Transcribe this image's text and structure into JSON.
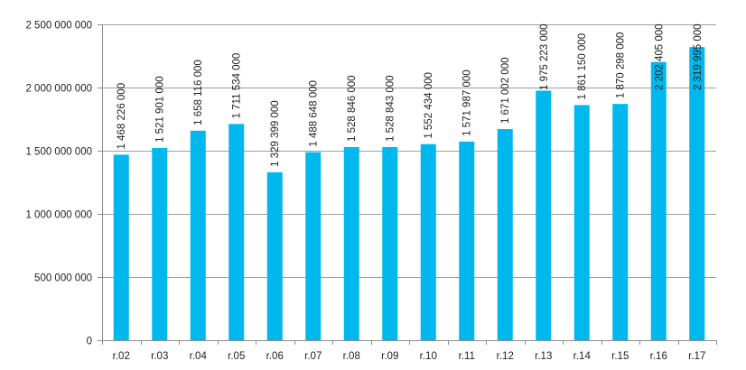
{
  "chart_data": {
    "type": "bar",
    "title": "",
    "xlabel": "",
    "ylabel": "",
    "categories": [
      "r.02",
      "r.03",
      "r.04",
      "r.05",
      "r.06",
      "r.07",
      "r.08",
      "r.09",
      "r.10",
      "r.11",
      "r.12",
      "r.13",
      "r.14",
      "r.15",
      "r.16",
      "r.17"
    ],
    "values": [
      1468226000,
      1521901000,
      1658116000,
      1711534000,
      1329399000,
      1488648000,
      1528846000,
      1528843000,
      1552434000,
      1571987000,
      1671002000,
      1975223000,
      1861150000,
      1870298000,
      2202405000,
      2319995000
    ],
    "value_labels": [
      "1 468 226 000",
      "1 521 901 000",
      "1 658 116 000",
      "1 711 534 000",
      "1 329 399 000",
      "1 488 648 000",
      "1 528 846 000",
      "1 528 843 000",
      "1 552 434 000",
      "1 571 987 000",
      "1 671 002 000",
      "1 975 223 000",
      "1 861 150 000",
      "1 870 298 000",
      "2 202 405 000",
      "2 319 995 000"
    ],
    "ylim": [
      0,
      2500000000
    ],
    "y_ticks": [
      0,
      500000000,
      1000000000,
      1500000000,
      2000000000,
      2500000000
    ],
    "y_tick_labels": [
      "0",
      "500 000 000",
      "1 000 000 000",
      "1 500 000 000",
      "2 000 000 000",
      "2 500 000 000"
    ],
    "grid": true,
    "legend": "none",
    "colors": {
      "bar": "#00B8EE",
      "grid": "#9E9E9E",
      "axis": "#8C8C8C",
      "text": "#222222"
    }
  }
}
